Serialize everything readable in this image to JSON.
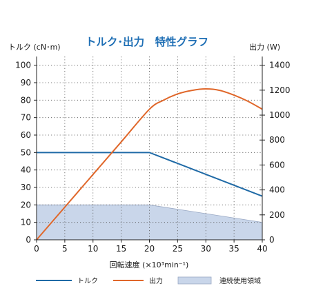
{
  "chart_data": {
    "type": "line",
    "title": "トルク･出力　特性グラフ",
    "xlabel": "回転速度 (×10³min⁻¹)",
    "ylabel_left": "トルク (cN･m)",
    "ylabel_right": "出力 (W)",
    "xlim": [
      0,
      40
    ],
    "ylim_left": [
      0,
      105
    ],
    "ylim_right": [
      0,
      1470
    ],
    "x_ticks": [
      "0",
      "5",
      "10",
      "15",
      "20",
      "25",
      "30",
      "35",
      "40"
    ],
    "y_ticks_left": [
      "0",
      "10",
      "20",
      "30",
      "40",
      "50",
      "60",
      "70",
      "80",
      "90",
      "100"
    ],
    "y_ticks_right": [
      "0",
      "200",
      "400",
      "600",
      "800",
      "1000",
      "1200",
      "1400"
    ],
    "grid": true,
    "legend_position": "bottom",
    "series": [
      {
        "name": "トルク",
        "axis": "left",
        "color": "#1f6aa6",
        "points": [
          [
            0,
            50
          ],
          [
            20,
            50
          ],
          [
            40,
            25
          ]
        ]
      },
      {
        "name": "出力",
        "axis": "right",
        "color": "#e0672a",
        "points": [
          [
            0,
            0
          ],
          [
            5,
            262
          ],
          [
            10,
            524
          ],
          [
            15,
            785
          ],
          [
            20,
            1047
          ],
          [
            22.5,
            1120
          ],
          [
            25,
            1170
          ],
          [
            27.5,
            1198
          ],
          [
            30,
            1210
          ],
          [
            32.5,
            1198
          ],
          [
            35,
            1160
          ],
          [
            37.5,
            1110
          ],
          [
            40,
            1047
          ]
        ]
      },
      {
        "name": "連続使用領域",
        "axis": "left",
        "type": "area",
        "color": "#c9d6ea",
        "points": [
          [
            0,
            20
          ],
          [
            20,
            20
          ],
          [
            40,
            10
          ]
        ]
      }
    ]
  }
}
